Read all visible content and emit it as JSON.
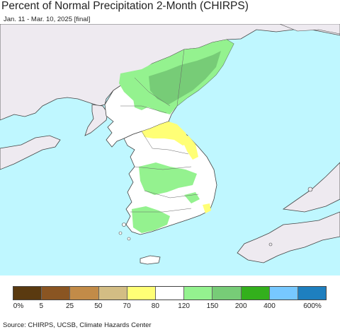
{
  "title": "Percent of Normal Precipitation 2-Month (CHIRPS)",
  "subtitle": "Jan. 11 - Mar. 10, 2025 [final]",
  "source": "Source: CHIRPS, UCSB, Climate Hazards Center",
  "colors": {
    "sea": "#bff7ff",
    "land_outside": "#eeeaf0",
    "border": "#444444"
  },
  "legend": {
    "colors": [
      "#5a3a10",
      "#8a5522",
      "#c28b48",
      "#d3bd84",
      "#ffff76",
      "#ffffff",
      "#94f28f",
      "#77cc77",
      "#33b01c",
      "#77c8ff",
      "#1e7fbf"
    ],
    "labels": [
      "0%",
      "5",
      "25",
      "50",
      "70",
      "80",
      "120",
      "150",
      "200",
      "400",
      "600%"
    ]
  }
}
